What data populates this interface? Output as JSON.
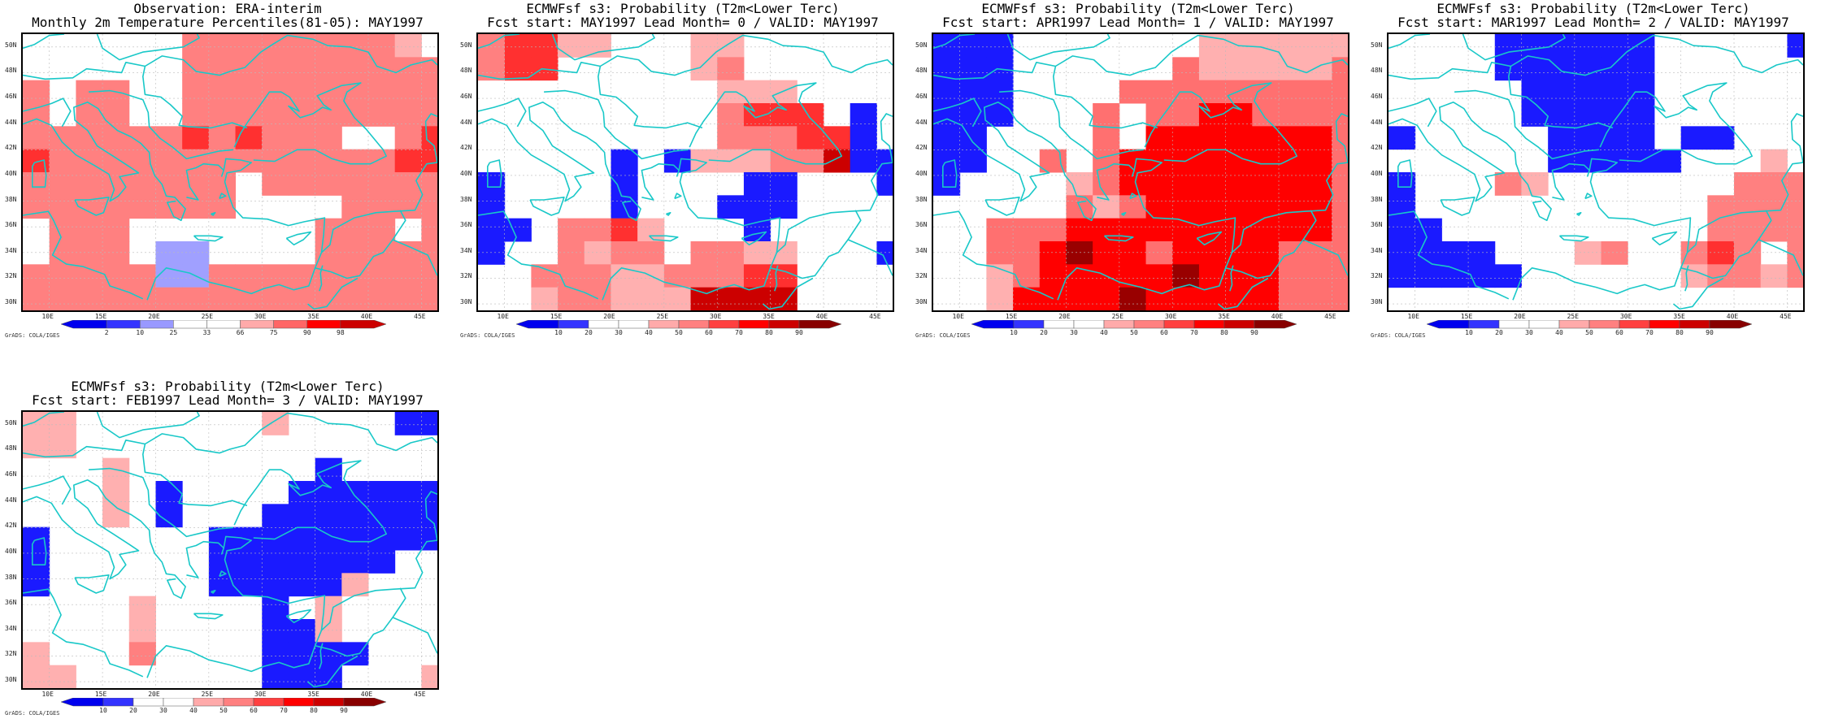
{
  "axes": {
    "lat_labels": [
      "50N",
      "48N",
      "46N",
      "44N",
      "42N",
      "40N",
      "38N",
      "36N",
      "34N",
      "32N",
      "30N"
    ],
    "lat_values": [
      50,
      48,
      46,
      44,
      42,
      40,
      38,
      36,
      34,
      32,
      30
    ],
    "lon_labels": [
      "10E",
      "15E",
      "20E",
      "25E",
      "30E",
      "35E",
      "40E",
      "45E"
    ],
    "lon_values": [
      10,
      15,
      20,
      25,
      30,
      35,
      40,
      45
    ],
    "lon_range": [
      7.5,
      46.5
    ],
    "lat_range": [
      29.5,
      51
    ],
    "grid_step_deg": 2.5
  },
  "credit": "GrADS: COLA/IGES",
  "coast_color": "#19c8c8",
  "panels": [
    {
      "title1": "Observation: ERA-interim",
      "title2": "Monthly 2m Temperature Percentiles(81-05): MAY1997",
      "colorbar": {
        "labels": [
          "2",
          "10",
          "25",
          "33",
          "66",
          "75",
          "90",
          "98"
        ],
        "colors": [
          "#0000ee",
          "#3333ff",
          "#9999ff",
          "#ffffff",
          "#ffffff",
          "#ffaaaa",
          "#ff6666",
          "#ff0000",
          "#cc0000"
        ]
      },
      "grid": [
        [
          0,
          0,
          0,
          0,
          0,
          0,
          3,
          3,
          3,
          3,
          3,
          3,
          3,
          3,
          2,
          0
        ],
        [
          0,
          0,
          0,
          0,
          0,
          0,
          3,
          3,
          3,
          3,
          3,
          3,
          3,
          3,
          3,
          3
        ],
        [
          3,
          0,
          3,
          3,
          0,
          0,
          3,
          3,
          3,
          3,
          3,
          3,
          3,
          3,
          3,
          3
        ],
        [
          3,
          0,
          3,
          3,
          0,
          0,
          3,
          3,
          3,
          3,
          3,
          3,
          3,
          3,
          3,
          3
        ],
        [
          3,
          3,
          3,
          3,
          3,
          3,
          4,
          3,
          4,
          3,
          3,
          3,
          0,
          0,
          3,
          4
        ],
        [
          4,
          3,
          3,
          3,
          3,
          3,
          3,
          3,
          3,
          3,
          3,
          3,
          3,
          3,
          4,
          4
        ],
        [
          3,
          3,
          3,
          3,
          3,
          3,
          3,
          3,
          0,
          3,
          3,
          3,
          3,
          3,
          3,
          3
        ],
        [
          3,
          3,
          3,
          3,
          3,
          3,
          3,
          3,
          0,
          0,
          0,
          0,
          3,
          3,
          3,
          3
        ],
        [
          0,
          3,
          3,
          3,
          0,
          0,
          0,
          0,
          0,
          0,
          0,
          3,
          3,
          3,
          0,
          3
        ],
        [
          0,
          3,
          3,
          3,
          0,
          -1,
          -1,
          0,
          0,
          0,
          0,
          3,
          3,
          3,
          3,
          3
        ],
        [
          3,
          3,
          3,
          3,
          3,
          -1,
          -1,
          3,
          3,
          3,
          3,
          3,
          3,
          3,
          3,
          3
        ],
        [
          3,
          3,
          3,
          3,
          3,
          3,
          3,
          3,
          3,
          3,
          3,
          3,
          3,
          3,
          3,
          3
        ]
      ]
    },
    {
      "title1": "ECMWFsf s3: Probability (T2m<Lower Terc)",
      "title2": "Fcst start: MAY1997   Lead Month= 0 / VALID: MAY1997",
      "colorbar": {
        "labels": [
          "10",
          "20",
          "30",
          "40",
          "50",
          "60",
          "70",
          "80",
          "90"
        ],
        "colors": [
          "#0000ee",
          "#3333ff",
          "#ffffff",
          "#ffffff",
          "#ffaaaa",
          "#ff8080",
          "#ff4040",
          "#ff0000",
          "#cc0000",
          "#880000"
        ]
      },
      "grid": [
        [
          3,
          4,
          4,
          2,
          2,
          0,
          0,
          0,
          2,
          2,
          0,
          0,
          0,
          0,
          0,
          0
        ],
        [
          3,
          4,
          4,
          0,
          0,
          0,
          0,
          0,
          2,
          3,
          0,
          0,
          0,
          0,
          0,
          0
        ],
        [
          0,
          0,
          0,
          0,
          0,
          0,
          0,
          0,
          0,
          2,
          2,
          2,
          0,
          0,
          0,
          0
        ],
        [
          0,
          0,
          0,
          0,
          0,
          0,
          0,
          0,
          0,
          3,
          4,
          4,
          4,
          0,
          -2,
          0
        ],
        [
          0,
          0,
          0,
          0,
          0,
          0,
          0,
          0,
          0,
          3,
          3,
          3,
          4,
          4,
          -2,
          0
        ],
        [
          0,
          0,
          0,
          0,
          0,
          -2,
          0,
          -2,
          2,
          2,
          2,
          3,
          3,
          5,
          -2,
          -2
        ],
        [
          -2,
          0,
          0,
          0,
          0,
          -2,
          0,
          0,
          0,
          0,
          -2,
          -2,
          0,
          0,
          0,
          -2
        ],
        [
          -2,
          0,
          0,
          0,
          0,
          -2,
          0,
          0,
          0,
          -2,
          -2,
          -2,
          0,
          0,
          0,
          0
        ],
        [
          -2,
          -2,
          0,
          3,
          3,
          4,
          2,
          0,
          0,
          0,
          -2,
          0,
          0,
          0,
          0,
          0
        ],
        [
          -2,
          0,
          0,
          3,
          2,
          3,
          3,
          0,
          3,
          3,
          2,
          2,
          0,
          0,
          0,
          -2
        ],
        [
          0,
          0,
          3,
          3,
          3,
          2,
          2,
          3,
          3,
          3,
          4,
          4,
          0,
          0,
          0,
          0
        ],
        [
          0,
          0,
          2,
          3,
          3,
          2,
          2,
          2,
          5,
          5,
          5,
          5,
          0,
          0,
          0,
          0
        ]
      ]
    },
    {
      "title1": "ECMWFsf s3: Probability (T2m<Lower Terc)",
      "title2": "Fcst start: APR1997   Lead Month= 1 / VALID: MAY1997",
      "colorbar": {
        "labels": [
          "10",
          "20",
          "30",
          "40",
          "50",
          "60",
          "70",
          "80",
          "90"
        ],
        "colors": [
          "#0000ee",
          "#3333ff",
          "#ffffff",
          "#ffffff",
          "#ffaaaa",
          "#ff8080",
          "#ff4040",
          "#ff0000",
          "#cc0000",
          "#880000"
        ]
      },
      "grid": [
        [
          -2,
          -2,
          -2,
          0,
          0,
          0,
          0,
          0,
          0,
          0,
          2,
          2,
          2,
          2,
          2,
          2
        ],
        [
          -2,
          -2,
          -2,
          0,
          0,
          0,
          0,
          0,
          0,
          3,
          2,
          2,
          2,
          2,
          2,
          3
        ],
        [
          -2,
          -2,
          -2,
          0,
          0,
          0,
          0,
          3,
          3,
          3,
          3,
          3,
          3,
          3,
          3,
          3
        ],
        [
          -2,
          -2,
          -2,
          0,
          0,
          0,
          3,
          0,
          3,
          3,
          4,
          4,
          3,
          3,
          3,
          3
        ],
        [
          -2,
          -2,
          0,
          0,
          0,
          0,
          3,
          0,
          4,
          4,
          4,
          4,
          4,
          4,
          4,
          3
        ],
        [
          -2,
          -2,
          0,
          0,
          3,
          0,
          3,
          4,
          4,
          4,
          4,
          4,
          4,
          4,
          4,
          3
        ],
        [
          -2,
          0,
          0,
          0,
          0,
          2,
          3,
          4,
          4,
          4,
          4,
          4,
          4,
          4,
          4,
          3
        ],
        [
          0,
          0,
          0,
          0,
          0,
          3,
          2,
          3,
          4,
          4,
          4,
          4,
          4,
          4,
          4,
          3
        ],
        [
          0,
          0,
          3,
          3,
          3,
          4,
          4,
          4,
          4,
          4,
          4,
          4,
          4,
          4,
          4,
          3
        ],
        [
          0,
          0,
          3,
          3,
          4,
          5,
          4,
          4,
          3,
          4,
          4,
          4,
          4,
          3,
          3,
          3
        ],
        [
          0,
          0,
          2,
          3,
          4,
          4,
          4,
          4,
          4,
          5,
          4,
          4,
          4,
          3,
          3,
          3
        ],
        [
          0,
          0,
          2,
          4,
          4,
          4,
          4,
          5,
          4,
          4,
          4,
          4,
          4,
          3,
          3,
          3
        ]
      ]
    },
    {
      "title1": "ECMWFsf s3: Probability (T2m<Lower Terc)",
      "title2": "Fcst start: MAR1997   Lead Month= 2 / VALID: MAY1997",
      "colorbar": {
        "labels": [
          "10",
          "20",
          "30",
          "40",
          "50",
          "60",
          "70",
          "80",
          "90"
        ],
        "colors": [
          "#0000ee",
          "#3333ff",
          "#ffffff",
          "#ffffff",
          "#ffaaaa",
          "#ff8080",
          "#ff4040",
          "#ff0000",
          "#cc0000",
          "#880000"
        ]
      },
      "grid": [
        [
          0,
          0,
          0,
          0,
          -2,
          -2,
          -2,
          -2,
          -2,
          -2,
          0,
          0,
          0,
          0,
          0,
          -2
        ],
        [
          0,
          0,
          0,
          0,
          -2,
          -2,
          -2,
          -2,
          -2,
          -2,
          0,
          0,
          0,
          0,
          0,
          0
        ],
        [
          0,
          0,
          0,
          0,
          0,
          -2,
          -2,
          -2,
          -2,
          -2,
          0,
          0,
          0,
          0,
          0,
          0
        ],
        [
          0,
          0,
          0,
          0,
          0,
          -2,
          -2,
          -2,
          -2,
          -2,
          0,
          0,
          0,
          0,
          0,
          0
        ],
        [
          -2,
          0,
          0,
          0,
          0,
          0,
          -2,
          -2,
          -2,
          -2,
          0,
          -2,
          -2,
          0,
          0,
          0
        ],
        [
          0,
          0,
          0,
          0,
          0,
          0,
          -2,
          -2,
          -2,
          -2,
          -2,
          0,
          0,
          0,
          2,
          0
        ],
        [
          -2,
          0,
          0,
          0,
          3,
          2,
          0,
          0,
          0,
          0,
          0,
          0,
          0,
          3,
          3,
          3
        ],
        [
          -2,
          0,
          0,
          0,
          0,
          0,
          0,
          0,
          0,
          0,
          0,
          0,
          3,
          3,
          3,
          3
        ],
        [
          -2,
          -2,
          0,
          0,
          0,
          0,
          0,
          0,
          0,
          0,
          0,
          0,
          3,
          3,
          3,
          3
        ],
        [
          -2,
          -2,
          -2,
          -2,
          0,
          0,
          0,
          2,
          3,
          0,
          0,
          3,
          4,
          3,
          0,
          3
        ],
        [
          -2,
          -2,
          -2,
          -2,
          -2,
          0,
          0,
          0,
          0,
          0,
          0,
          2,
          3,
          3,
          2,
          3
        ],
        [
          0,
          0,
          0,
          0,
          0,
          0,
          0,
          0,
          0,
          0,
          0,
          0,
          0,
          0,
          0,
          0
        ]
      ]
    },
    {
      "title1": "ECMWFsf s3: Probability (T2m<Lower Terc)",
      "title2": "Fcst start: FEB1997   Lead Month= 3 / VALID: MAY1997",
      "colorbar": {
        "labels": [
          "10",
          "20",
          "30",
          "40",
          "50",
          "60",
          "70",
          "80",
          "90"
        ],
        "colors": [
          "#0000ee",
          "#3333ff",
          "#ffffff",
          "#ffffff",
          "#ffaaaa",
          "#ff8080",
          "#ff4040",
          "#ff0000",
          "#cc0000",
          "#880000"
        ]
      },
      "grid": [
        [
          2,
          2,
          0,
          0,
          0,
          0,
          0,
          0,
          0,
          2,
          0,
          0,
          0,
          0,
          -2,
          -2
        ],
        [
          2,
          2,
          0,
          0,
          0,
          0,
          0,
          0,
          0,
          0,
          0,
          0,
          0,
          0,
          0,
          0
        ],
        [
          0,
          0,
          0,
          2,
          0,
          0,
          0,
          0,
          0,
          0,
          0,
          -2,
          0,
          0,
          0,
          0
        ],
        [
          0,
          0,
          0,
          2,
          0,
          -2,
          0,
          0,
          0,
          0,
          -2,
          -2,
          -2,
          -2,
          -2,
          -2
        ],
        [
          0,
          0,
          0,
          2,
          0,
          -2,
          0,
          0,
          0,
          -2,
          -2,
          -2,
          -2,
          -2,
          -2,
          -2
        ],
        [
          -2,
          0,
          0,
          0,
          0,
          0,
          0,
          -2,
          -2,
          -2,
          -2,
          -2,
          -2,
          -2,
          -2,
          -2
        ],
        [
          -2,
          0,
          0,
          0,
          0,
          0,
          0,
          -2,
          -2,
          -2,
          -2,
          -2,
          -2,
          -2,
          0,
          0
        ],
        [
          -2,
          0,
          0,
          0,
          0,
          0,
          0,
          -2,
          -2,
          -2,
          -2,
          -2,
          2,
          0,
          0,
          0
        ],
        [
          0,
          0,
          0,
          0,
          2,
          0,
          0,
          0,
          0,
          -2,
          0,
          2,
          0,
          0,
          0,
          0
        ],
        [
          0,
          0,
          0,
          0,
          2,
          0,
          0,
          0,
          0,
          -2,
          -2,
          2,
          0,
          0,
          0,
          0
        ],
        [
          2,
          0,
          0,
          0,
          3,
          0,
          0,
          0,
          0,
          -2,
          -2,
          -2,
          -2,
          0,
          0,
          0
        ],
        [
          2,
          2,
          0,
          0,
          0,
          0,
          0,
          0,
          0,
          -2,
          -2,
          -2,
          0,
          0,
          0,
          2
        ]
      ]
    }
  ]
}
